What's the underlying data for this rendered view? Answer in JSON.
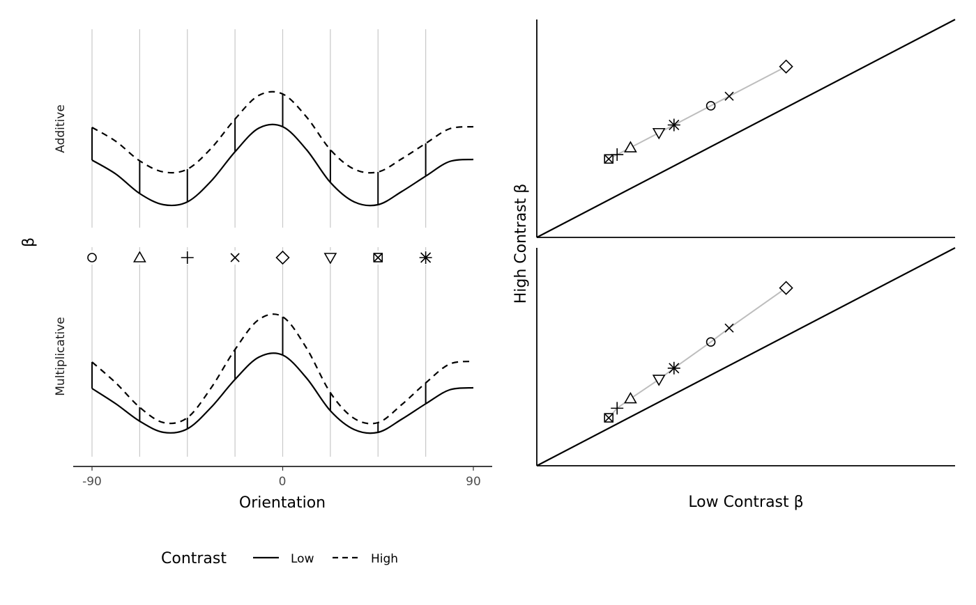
{
  "chart_data": {
    "type": "line",
    "left": {
      "ylabel": "β",
      "xlabel": "Orientation",
      "xlim": [
        -90,
        90
      ],
      "xticks": [
        "-90",
        "0",
        "90"
      ],
      "panels": [
        {
          "label": "Additive",
          "x": [
            -90,
            -78.75,
            -67.5,
            -56.25,
            -45,
            -33.75,
            -22.5,
            -11.25,
            0,
            11.25,
            22.5,
            33.75,
            45,
            56.25,
            67.5,
            78.75,
            90
          ],
          "series": [
            {
              "name": "Low",
              "values": [
                1.0,
                0.8,
                0.52,
                0.36,
                0.4,
                0.7,
                1.12,
                1.46,
                1.48,
                1.15,
                0.68,
                0.4,
                0.36,
                0.55,
                0.77,
                0.98,
                1.01
              ]
            },
            {
              "name": "High",
              "values": [
                1.47,
                1.27,
                0.99,
                0.83,
                0.87,
                1.17,
                1.59,
                1.93,
                1.95,
                1.62,
                1.15,
                0.87,
                0.83,
                1.02,
                1.24,
                1.45,
                1.48
              ]
            }
          ]
        },
        {
          "label": "Multiplicative",
          "x": [
            -90,
            -78.75,
            -67.5,
            -56.25,
            -45,
            -33.75,
            -22.5,
            -11.25,
            0,
            11.25,
            22.5,
            33.75,
            45,
            56.25,
            67.5,
            78.75,
            90
          ],
          "series": [
            {
              "name": "Low",
              "values": [
                1.02,
                0.8,
                0.55,
                0.39,
                0.44,
                0.75,
                1.15,
                1.47,
                1.5,
                1.17,
                0.7,
                0.43,
                0.39,
                0.58,
                0.8,
                1.0,
                1.03
              ]
            },
            {
              "name": "High",
              "values": [
                1.4,
                1.1,
                0.75,
                0.53,
                0.6,
                1.03,
                1.58,
                2.01,
                2.05,
                1.6,
                0.96,
                0.59,
                0.53,
                0.79,
                1.1,
                1.37,
                1.41
              ]
            }
          ]
        }
      ],
      "probes": [
        {
          "orientation": -90,
          "shape": "circle"
        },
        {
          "orientation": -67.5,
          "shape": "triangle-up"
        },
        {
          "orientation": -45,
          "shape": "plus"
        },
        {
          "orientation": -22.5,
          "shape": "cross"
        },
        {
          "orientation": 0,
          "shape": "diamond"
        },
        {
          "orientation": 22.5,
          "shape": "triangle-down"
        },
        {
          "orientation": 45,
          "shape": "square-cross"
        },
        {
          "orientation": 67.5,
          "shape": "asterisk"
        }
      ]
    },
    "right": {
      "type": "scatter",
      "xlabel": "Low Contrast β",
      "ylabel": "High Contrast β",
      "xlim": [
        0,
        2.5
      ],
      "ylim": [
        0,
        2.5
      ],
      "panels": [
        {
          "label": "Additive",
          "points": [
            {
              "shape": "circle",
              "low": 1.04,
              "high": 1.51
            },
            {
              "shape": "triangle-up",
              "low": 0.56,
              "high": 1.03
            },
            {
              "shape": "plus",
              "low": 0.48,
              "high": 0.95
            },
            {
              "shape": "cross",
              "low": 1.15,
              "high": 1.62
            },
            {
              "shape": "diamond",
              "low": 1.49,
              "high": 1.96
            },
            {
              "shape": "triangle-down",
              "low": 0.73,
              "high": 1.2
            },
            {
              "shape": "square-cross",
              "low": 0.43,
              "high": 0.9
            },
            {
              "shape": "asterisk",
              "low": 0.82,
              "high": 1.29
            }
          ]
        },
        {
          "label": "Multiplicative",
          "points": [
            {
              "shape": "circle",
              "low": 1.04,
              "high": 1.42
            },
            {
              "shape": "triangle-up",
              "low": 0.56,
              "high": 0.77
            },
            {
              "shape": "plus",
              "low": 0.48,
              "high": 0.66
            },
            {
              "shape": "cross",
              "low": 1.15,
              "high": 1.58
            },
            {
              "shape": "diamond",
              "low": 1.49,
              "high": 2.04
            },
            {
              "shape": "triangle-down",
              "low": 0.73,
              "high": 0.99
            },
            {
              "shape": "square-cross",
              "low": 0.43,
              "high": 0.55
            },
            {
              "shape": "asterisk",
              "low": 0.82,
              "high": 1.12
            }
          ]
        }
      ]
    },
    "legend": {
      "title": "Contrast",
      "placement": "bottom",
      "entries": [
        {
          "label": "Low",
          "dash": "solid"
        },
        {
          "label": "High",
          "dash": "dashed"
        }
      ]
    }
  }
}
